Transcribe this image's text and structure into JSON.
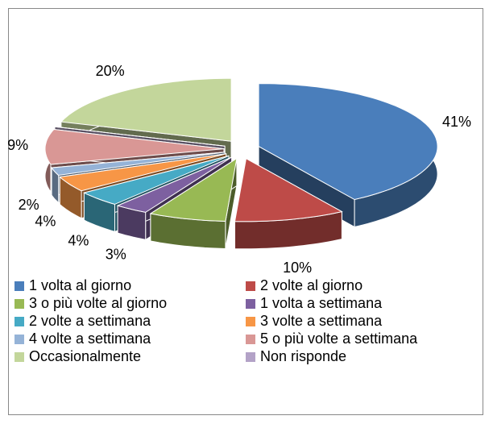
{
  "chart_data": {
    "type": "pie3d",
    "categories": [
      "1 volta al giorno",
      "2 volte al giorno",
      "3 o più volte al giorno",
      "1 volta a settimana",
      "2 volte a settimana",
      "3 volte a settimana",
      "4 volte a settimana",
      "5 o più volte a settimana",
      "Non risponde",
      "Occasionalmente"
    ],
    "values": [
      41,
      10,
      7,
      3,
      4,
      4,
      2,
      9,
      0,
      20
    ],
    "value_labels": [
      "41%",
      "10%",
      null,
      "3%",
      "4%",
      "4%",
      "2%",
      "9%",
      null,
      "20%"
    ],
    "colors": [
      "#4a7ebb",
      "#be4b48",
      "#98b954",
      "#7d60a0",
      "#46aac5",
      "#f79646",
      "#95b3d7",
      "#d99795",
      "#b3a2c7",
      "#c3d69b"
    ],
    "legend_order": [
      0,
      1,
      2,
      3,
      4,
      5,
      6,
      7,
      9,
      8
    ],
    "legend": "bottom"
  }
}
